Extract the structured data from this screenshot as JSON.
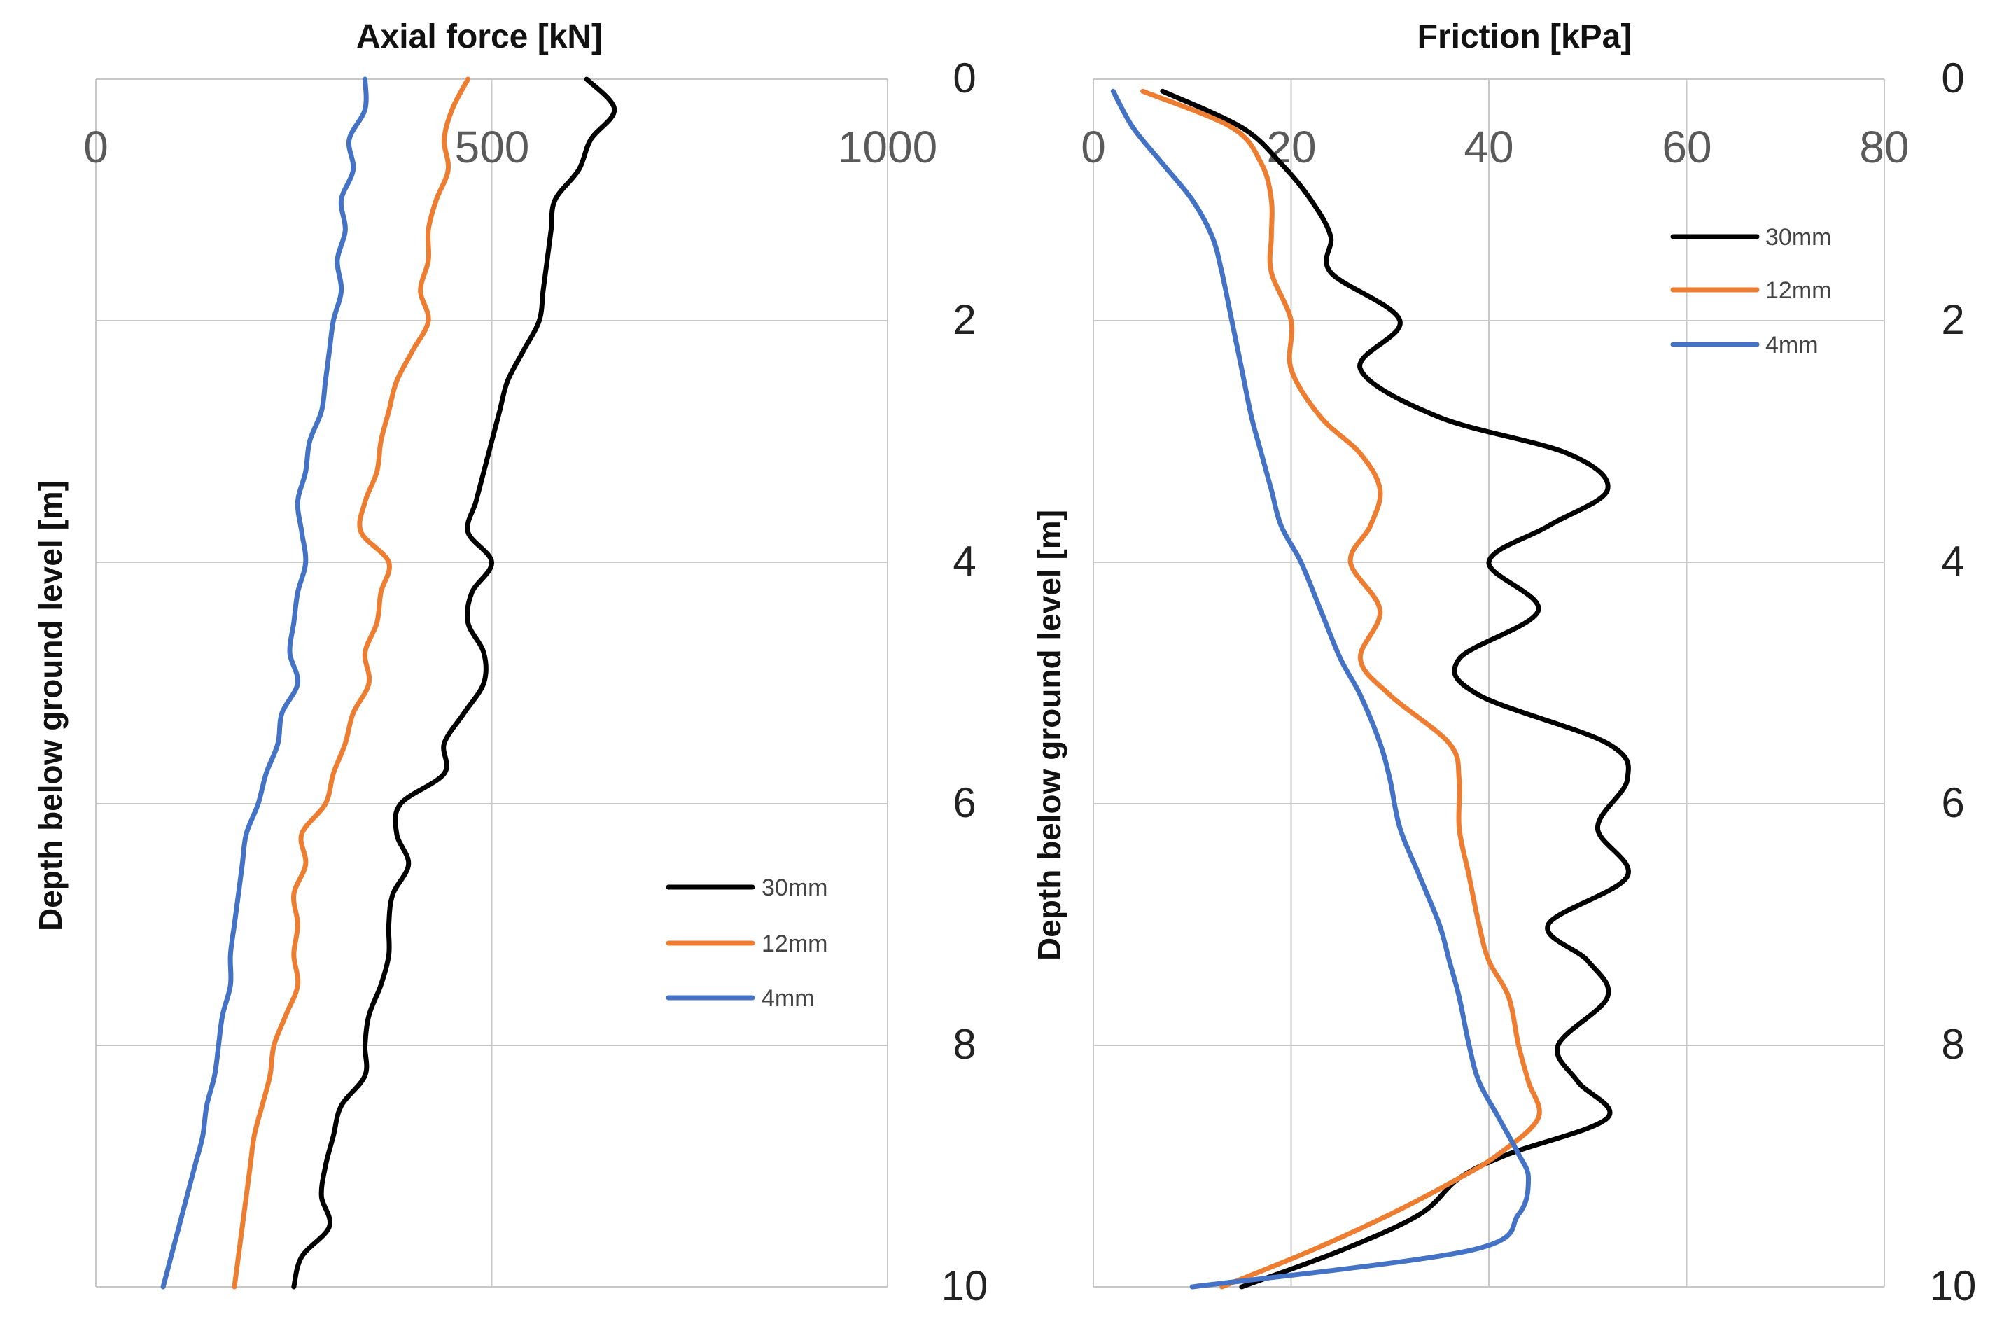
{
  "colors": {
    "black": "#000000",
    "orange": "#ED7D31",
    "blue": "#4472C4"
  },
  "chart_data": [
    {
      "type": "line",
      "title": "Axial force [kN]",
      "xlabel": "Axial force [kN]",
      "ylabel": "Depth below ground level   [m]",
      "xlim": [
        0,
        1000
      ],
      "ylim": [
        0,
        10
      ],
      "y_inverted": true,
      "xticks": [
        "0",
        "500",
        "1000"
      ],
      "yticks": [
        "0",
        "2",
        "4",
        "6",
        "8",
        "10"
      ],
      "grid": true,
      "legend_position": "lower-right",
      "series": [
        {
          "name": "30mm",
          "color": "#000000",
          "depth": [
            0,
            0.25,
            0.5,
            0.75,
            1.0,
            1.25,
            1.5,
            1.75,
            2.0,
            2.25,
            2.5,
            2.75,
            3.0,
            3.25,
            3.5,
            3.75,
            4.0,
            4.25,
            4.5,
            4.75,
            5.0,
            5.25,
            5.5,
            5.75,
            6.0,
            6.25,
            6.5,
            6.75,
            7.0,
            7.25,
            7.5,
            7.75,
            8.0,
            8.25,
            8.5,
            8.75,
            9.0,
            9.25,
            9.5,
            9.75,
            10.0
          ],
          "force": [
            620,
            655,
            625,
            610,
            580,
            575,
            570,
            565,
            560,
            540,
            520,
            510,
            500,
            490,
            480,
            470,
            500,
            475,
            470,
            490,
            490,
            465,
            440,
            440,
            385,
            380,
            395,
            375,
            370,
            370,
            360,
            345,
            340,
            340,
            310,
            300,
            290,
            285,
            295,
            260,
            250
          ]
        },
        {
          "name": "12mm",
          "color": "#ED7D31",
          "depth": [
            0,
            0.25,
            0.5,
            0.75,
            1.0,
            1.25,
            1.5,
            1.75,
            2.0,
            2.25,
            2.5,
            2.75,
            3.0,
            3.25,
            3.5,
            3.75,
            4.0,
            4.25,
            4.5,
            4.75,
            5.0,
            5.25,
            5.5,
            5.75,
            6.0,
            6.25,
            6.5,
            6.75,
            7.0,
            7.25,
            7.5,
            7.75,
            8.0,
            8.25,
            8.5,
            8.75,
            9.0,
            9.25,
            9.5,
            9.75,
            10.0
          ],
          "force": [
            470,
            450,
            440,
            445,
            430,
            420,
            420,
            410,
            420,
            400,
            380,
            370,
            360,
            355,
            340,
            335,
            370,
            360,
            355,
            340,
            345,
            325,
            315,
            300,
            290,
            260,
            265,
            250,
            255,
            250,
            255,
            240,
            225,
            220,
            210,
            200,
            195,
            190,
            185,
            180,
            175
          ]
        },
        {
          "name": "4mm",
          "color": "#4472C4",
          "depth": [
            0,
            0.25,
            0.5,
            0.75,
            1.0,
            1.25,
            1.5,
            1.75,
            2.0,
            2.25,
            2.5,
            2.75,
            3.0,
            3.25,
            3.5,
            3.75,
            4.0,
            4.25,
            4.5,
            4.75,
            5.0,
            5.25,
            5.5,
            5.75,
            6.0,
            6.25,
            6.5,
            6.75,
            7.0,
            7.25,
            7.5,
            7.75,
            8.0,
            8.25,
            8.5,
            8.75,
            9.0,
            9.25,
            9.5,
            9.75,
            10.0
          ],
          "force": [
            340,
            340,
            320,
            325,
            310,
            315,
            305,
            310,
            300,
            295,
            290,
            285,
            270,
            265,
            255,
            260,
            265,
            255,
            250,
            245,
            255,
            235,
            230,
            215,
            205,
            190,
            185,
            180,
            175,
            170,
            170,
            160,
            155,
            150,
            140,
            135,
            125,
            115,
            105,
            95,
            85
          ]
        }
      ]
    },
    {
      "type": "line",
      "title": "Friction [kPa]",
      "xlabel": "Friction [kPa]",
      "ylabel": "Depth below ground level   [m]",
      "xlim": [
        0,
        80
      ],
      "ylim": [
        0,
        10
      ],
      "y_inverted": true,
      "xticks": [
        "0",
        "20",
        "40",
        "60",
        "80"
      ],
      "yticks": [
        "0",
        "2",
        "4",
        "6",
        "8",
        "10"
      ],
      "grid": true,
      "legend_position": "top-right",
      "series": [
        {
          "name": "30mm",
          "color": "#000000",
          "depth": [
            0.1,
            0.4,
            0.7,
            1.0,
            1.3,
            1.6,
            2.0,
            2.4,
            2.8,
            3.1,
            3.4,
            3.7,
            4.0,
            4.4,
            4.8,
            5.1,
            5.5,
            5.8,
            6.2,
            6.6,
            7.0,
            7.3,
            7.6,
            8.0,
            8.3,
            8.6,
            8.9,
            9.1,
            9.4,
            9.7,
            10.0
          ],
          "friction": [
            7,
            15,
            19,
            22,
            24,
            24,
            31,
            27,
            35,
            48,
            52,
            46,
            40,
            45,
            37,
            39,
            52,
            54,
            51,
            54,
            46,
            50,
            52,
            47,
            49,
            52,
            42,
            37,
            33,
            25,
            15
          ]
        },
        {
          "name": "12mm",
          "color": "#ED7D31",
          "depth": [
            0.1,
            0.4,
            0.7,
            1.0,
            1.3,
            1.6,
            2.0,
            2.4,
            2.8,
            3.1,
            3.4,
            3.7,
            4.0,
            4.4,
            4.8,
            5.1,
            5.5,
            5.8,
            6.2,
            6.6,
            7.0,
            7.3,
            7.6,
            8.0,
            8.3,
            8.6,
            8.9,
            9.1,
            9.4,
            9.7,
            10.0
          ],
          "friction": [
            5,
            14,
            17,
            18,
            18,
            18,
            20,
            20,
            23,
            27,
            29,
            28,
            26,
            29,
            27,
            30,
            36,
            37,
            37,
            38,
            39,
            40,
            42,
            43,
            44,
            45,
            41,
            37,
            30,
            22,
            13
          ]
        },
        {
          "name": "4mm",
          "color": "#4472C4",
          "depth": [
            0.1,
            0.4,
            0.7,
            1.0,
            1.3,
            1.6,
            2.0,
            2.4,
            2.8,
            3.1,
            3.4,
            3.7,
            4.0,
            4.4,
            4.8,
            5.1,
            5.5,
            5.8,
            6.2,
            6.6,
            7.0,
            7.3,
            7.6,
            8.0,
            8.3,
            8.6,
            8.9,
            9.1,
            9.4,
            9.7,
            10.0
          ],
          "friction": [
            2,
            4,
            7,
            10,
            12,
            13,
            14,
            15,
            16,
            17,
            18,
            19,
            21,
            23,
            25,
            27,
            29,
            30,
            31,
            33,
            35,
            36,
            37,
            38,
            39,
            41,
            43,
            44,
            43,
            38,
            10
          ]
        }
      ]
    }
  ]
}
